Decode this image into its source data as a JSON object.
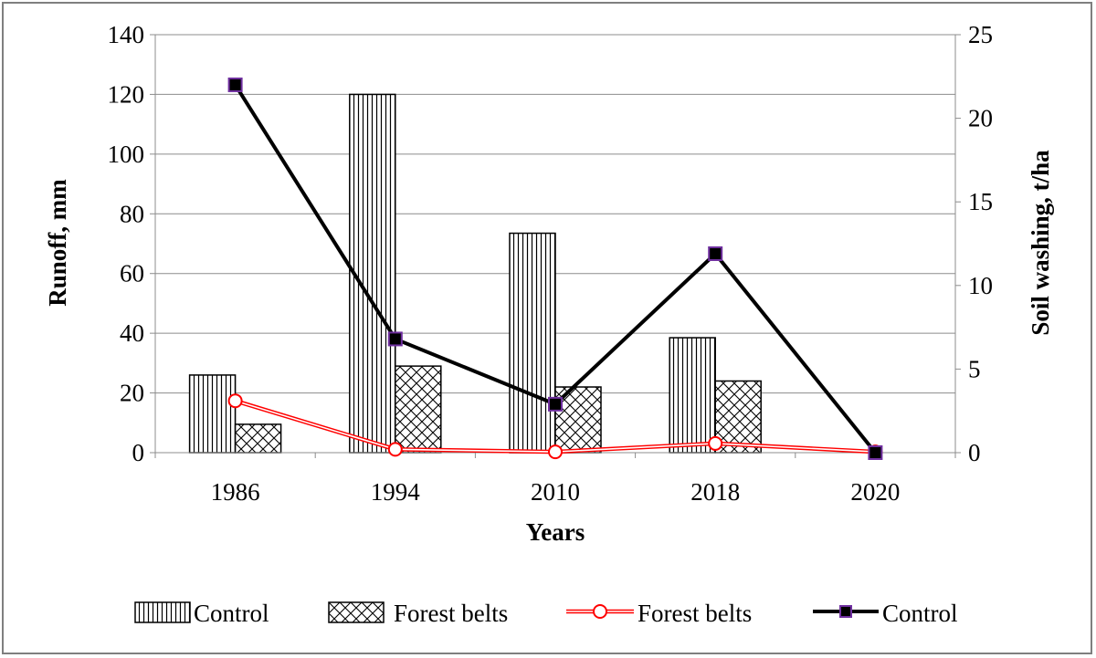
{
  "chart_data": {
    "type": "bar",
    "categories": [
      "1986",
      "1994",
      "2010",
      "2018",
      "2020"
    ],
    "xlabel": "Years",
    "ylabel": "Runoff, mm",
    "y2label": "Soil washing, t/ha",
    "ylim": [
      0,
      140
    ],
    "y2lim": [
      0,
      25
    ],
    "yticks": [
      "0",
      "20",
      "40",
      "60",
      "80",
      "100",
      "120",
      "140"
    ],
    "y2ticks": [
      "0",
      "5",
      "10",
      "15",
      "20",
      "25"
    ],
    "grid": true,
    "legend_position": "bottom",
    "bar_series": [
      {
        "name": "Control",
        "values": [
          26,
          120,
          73.5,
          38.5,
          0
        ],
        "pattern": "vertical-lines"
      },
      {
        "name": "Forest belts",
        "values": [
          9.5,
          29,
          22,
          24,
          0
        ],
        "pattern": "crosshatch"
      }
    ],
    "line_series": [
      {
        "name": "Forest belts",
        "axis": "right",
        "values": [
          3.1,
          0.2,
          0.05,
          0.55,
          0.05
        ],
        "color": "#ff0000",
        "marker": "open-circle"
      },
      {
        "name": "Control",
        "axis": "right",
        "values": [
          22,
          6.8,
          2.9,
          11.9,
          0
        ],
        "color": "#000000",
        "marker": "filled-square",
        "marker_edge_color": "#7030a0"
      }
    ]
  }
}
